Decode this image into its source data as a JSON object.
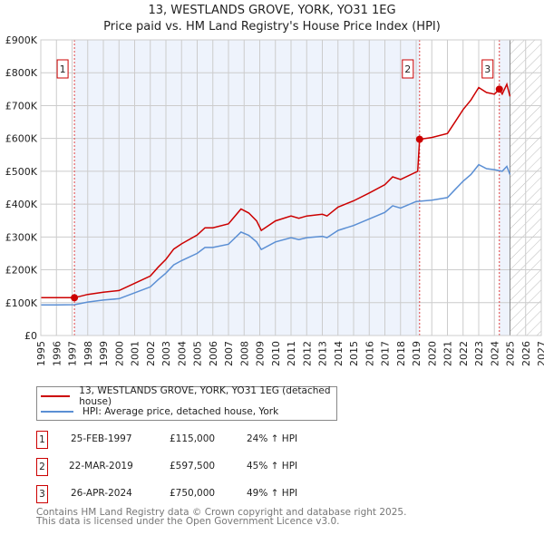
{
  "chart_data": {
    "type": "line",
    "title": "13, WESTLANDS GROVE, YORK, YO31 1EG",
    "subtitle": "Price paid vs. HM Land Registry's House Price Index (HPI)",
    "xlim": [
      1995,
      2027
    ],
    "ylim": [
      0,
      900000
    ],
    "x_ticks": [
      "1995",
      "1996",
      "1997",
      "1998",
      "1999",
      "2000",
      "2001",
      "2002",
      "2003",
      "2004",
      "2005",
      "2006",
      "2007",
      "2008",
      "2009",
      "2010",
      "2011",
      "2012",
      "2013",
      "2014",
      "2015",
      "2016",
      "2017",
      "2018",
      "2019",
      "2020",
      "2021",
      "2022",
      "2023",
      "2024",
      "2025",
      "2026",
      "2027"
    ],
    "y_ticks": [
      {
        "v": 0,
        "label": "£0"
      },
      {
        "v": 100000,
        "label": "£100K"
      },
      {
        "v": 200000,
        "label": "£200K"
      },
      {
        "v": 300000,
        "label": "£300K"
      },
      {
        "v": 400000,
        "label": "£400K"
      },
      {
        "v": 500000,
        "label": "£500K"
      },
      {
        "v": 600000,
        "label": "£600K"
      },
      {
        "v": 700000,
        "label": "£700K"
      },
      {
        "v": 800000,
        "label": "£800K"
      },
      {
        "v": 900000,
        "label": "£900K"
      }
    ],
    "grid": true,
    "shaded_ranges": [
      [
        1997.15,
        2019.22
      ],
      [
        2024.32,
        2025.0
      ]
    ],
    "forecast_hatch_from": 2025.0,
    "series": [
      {
        "name": "13, WESTLANDS GROVE, YORK, YO31 1EG (detached house)",
        "color": "#cc0000",
        "x": [
          1995,
          1996,
          1997.15,
          1998,
          1999,
          2000,
          2001,
          2002,
          2002.5,
          2003,
          2003.5,
          2004,
          2005,
          2005.5,
          2006,
          2007,
          2007.8,
          2008.3,
          2008.8,
          2009.1,
          2010,
          2011,
          2011.5,
          2012,
          2013,
          2013.3,
          2014,
          2015,
          2016,
          2017,
          2017.5,
          2018,
          2019.1,
          2019.22,
          2020,
          2021,
          2021.5,
          2022,
          2022.5,
          2023,
          2023.5,
          2024,
          2024.32,
          2024.5,
          2024.8,
          2025
        ],
        "y": [
          115000,
          115000,
          115000,
          125000,
          132000,
          137000,
          159000,
          181000,
          208000,
          232000,
          263000,
          279000,
          306000,
          328000,
          328000,
          340000,
          385000,
          373000,
          349000,
          320000,
          349000,
          364000,
          357000,
          364000,
          369000,
          364000,
          391000,
          410000,
          434000,
          459000,
          483000,
          475000,
          500000,
          597500,
          603000,
          615000,
          651000,
          688000,
          717000,
          755000,
          740000,
          735000,
          750000,
          735000,
          765000,
          728000
        ]
      },
      {
        "name": "HPI: Average price, detached house, York",
        "color": "#5b8fd4",
        "x": [
          1995,
          1996,
          1997.15,
          1998,
          1999,
          2000,
          2001,
          2002,
          2002.5,
          2003,
          2003.5,
          2004,
          2005,
          2005.5,
          2006,
          2007,
          2007.8,
          2008.3,
          2008.8,
          2009.1,
          2010,
          2011,
          2011.5,
          2012,
          2013,
          2013.3,
          2014,
          2015,
          2016,
          2017,
          2017.5,
          2018,
          2019,
          2020,
          2021,
          2021.5,
          2022,
          2022.5,
          2023,
          2023.5,
          2024,
          2024.5,
          2024.8,
          2025
        ],
        "y": [
          93000,
          93000,
          94000,
          102000,
          108000,
          112000,
          130000,
          148000,
          170000,
          190000,
          215000,
          228000,
          250000,
          268000,
          268000,
          278000,
          315000,
          305000,
          285000,
          262000,
          285000,
          298000,
          292000,
          298000,
          302000,
          298000,
          320000,
          335000,
          355000,
          375000,
          395000,
          388000,
          408000,
          412000,
          420000,
          445000,
          470000,
          490000,
          520000,
          508000,
          505000,
          500000,
          515000,
          490000
        ]
      }
    ],
    "sales": [
      {
        "id": "1",
        "x": 1997.15,
        "y": 115000,
        "date": "25-FEB-1997",
        "price": "£115,000",
        "hpi": "24% ↑ HPI"
      },
      {
        "id": "2",
        "x": 2019.22,
        "y": 597500,
        "date": "22-MAR-2019",
        "price": "£597,500",
        "hpi": "45% ↑ HPI"
      },
      {
        "id": "3",
        "x": 2024.32,
        "y": 750000,
        "date": "26-APR-2024",
        "price": "£750,000",
        "hpi": "49% ↑ HPI"
      }
    ],
    "legend_position": "below"
  },
  "footer": {
    "line1": "Contains HM Land Registry data © Crown copyright and database right 2025.",
    "line2": "This data is licensed under the Open Government Licence v3.0."
  }
}
